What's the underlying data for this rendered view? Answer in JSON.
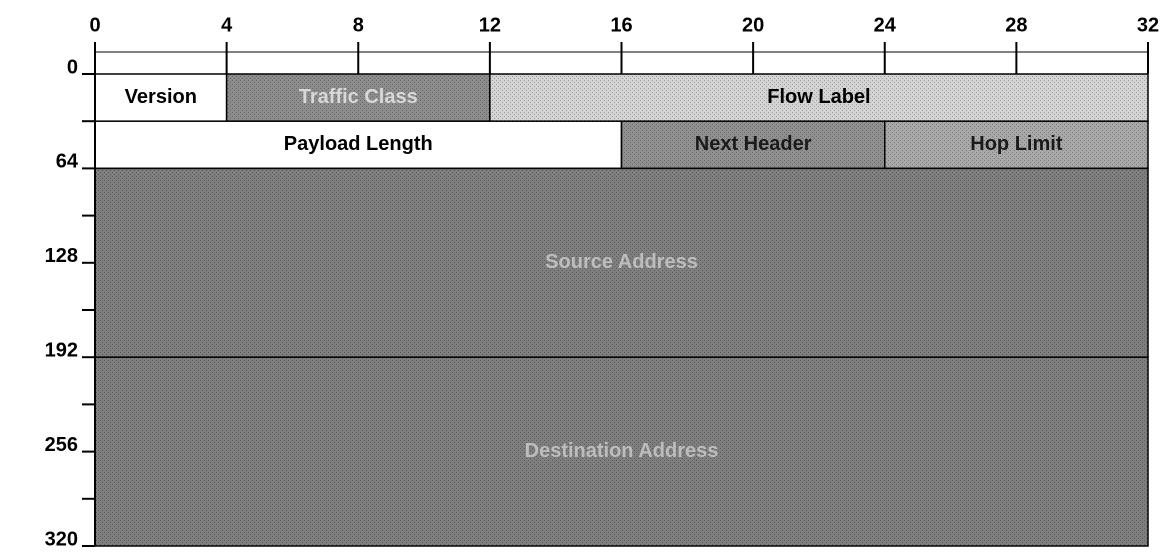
{
  "top_scale": [
    0,
    4,
    8,
    12,
    16,
    20,
    24,
    28,
    32
  ],
  "left_scale": [
    0,
    64,
    128,
    192,
    256,
    320
  ],
  "fields": [
    {
      "label": "Version"
    },
    {
      "label": "Traffic Class"
    },
    {
      "label": "Flow Label"
    },
    {
      "label": "Payload Length"
    },
    {
      "label": "Next Header"
    },
    {
      "label": "Hop Limit"
    },
    {
      "label": "Source Address"
    },
    {
      "label": "Destination Address"
    }
  ]
}
